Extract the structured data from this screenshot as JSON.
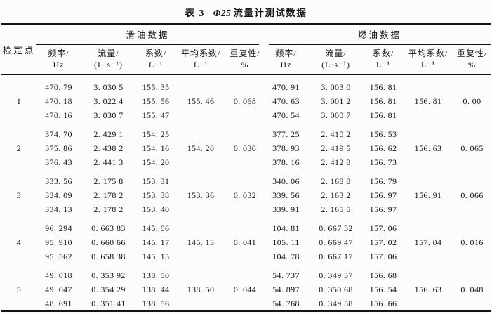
{
  "title": {
    "prefix": "表 3",
    "symbol": "Φ25",
    "rest": "流量计测试数据"
  },
  "header": {
    "point": "检定点",
    "lube_group": "滑油数据",
    "fuel_group": "燃油数据",
    "cols": [
      {
        "l1": "频率/",
        "l2": "Hz"
      },
      {
        "l1": "流量/",
        "l2": "(L·s⁻¹)"
      },
      {
        "l1": "系数/",
        "l2": "L⁻¹"
      },
      {
        "l1": "平均系数/",
        "l2": "L⁻¹"
      },
      {
        "l1": "重复性/",
        "l2": "%"
      }
    ]
  },
  "rows": [
    {
      "point": "1",
      "lube": [
        [
          "470. 79",
          "3. 030 5",
          "155. 35"
        ],
        [
          "470. 18",
          "3. 022 4",
          "155. 56"
        ],
        [
          "470. 16",
          "3. 030 7",
          "155. 47"
        ]
      ],
      "lube_avg": "155. 46",
      "lube_rep": "0. 068",
      "fuel": [
        [
          "470. 91",
          "3. 003 0",
          "156. 81"
        ],
        [
          "470. 63",
          "3. 001 2",
          "156. 81"
        ],
        [
          "470. 54",
          "3. 000 7",
          "156. 81"
        ]
      ],
      "fuel_avg": "156. 81",
      "fuel_rep": "0. 00"
    },
    {
      "point": "2",
      "lube": [
        [
          "374. 70",
          "2. 429 1",
          "154. 25"
        ],
        [
          "375. 86",
          "2. 438 2",
          "154. 16"
        ],
        [
          "376. 43",
          "2. 441 3",
          "154. 20"
        ]
      ],
      "lube_avg": "154. 20",
      "lube_rep": "0. 030",
      "fuel": [
        [
          "377. 25",
          "2. 410 2",
          "156. 53"
        ],
        [
          "378. 93",
          "2. 419 5",
          "156. 62"
        ],
        [
          "378. 16",
          "2. 412 8",
          "156. 73"
        ]
      ],
      "fuel_avg": "156. 63",
      "fuel_rep": "0. 065"
    },
    {
      "point": "3",
      "lube": [
        [
          "333. 56",
          "2. 175 8",
          "153. 31"
        ],
        [
          "334. 09",
          "2. 178 2",
          "153. 38"
        ],
        [
          "334. 13",
          "2. 178 2",
          "153. 40"
        ]
      ],
      "lube_avg": "153. 36",
      "lube_rep": "0. 032",
      "fuel": [
        [
          "340. 06",
          "2. 168 8",
          "156. 79"
        ],
        [
          "339. 56",
          "2. 163 2",
          "156. 97"
        ],
        [
          "339. 91",
          "2. 165 5",
          "156. 97"
        ]
      ],
      "fuel_avg": "156. 91",
      "fuel_rep": "0. 066"
    },
    {
      "point": "4",
      "lube": [
        [
          "96. 294",
          "0. 663 83",
          "145. 06"
        ],
        [
          "95. 910",
          "0. 660 66",
          "145. 17"
        ],
        [
          "95. 562",
          "0. 658 38",
          "145. 15"
        ]
      ],
      "lube_avg": "145. 13",
      "lube_rep": "0. 041",
      "fuel": [
        [
          "104. 81",
          "0. 667 32",
          "157. 06"
        ],
        [
          "105. 11",
          "0. 669 47",
          "157. 02"
        ],
        [
          "104. 78",
          "0. 667 17",
          "157. 06"
        ]
      ],
      "fuel_avg": "157. 04",
      "fuel_rep": "0. 016"
    },
    {
      "point": "5",
      "lube": [
        [
          "49. 018",
          "0. 353 92",
          "138. 50"
        ],
        [
          "49. 047",
          "0. 354 29",
          "138. 44"
        ],
        [
          "48. 691",
          "0. 351 41",
          "138. 56"
        ]
      ],
      "lube_avg": "138. 50",
      "lube_rep": "0. 044",
      "fuel": [
        [
          "54. 737",
          "0. 349 37",
          "156. 68"
        ],
        [
          "54. 897",
          "0. 350 68",
          "156. 54"
        ],
        [
          "54. 768",
          "0. 349 58",
          "156. 66"
        ]
      ],
      "fuel_avg": "156. 63",
      "fuel_rep": "0. 048"
    }
  ]
}
